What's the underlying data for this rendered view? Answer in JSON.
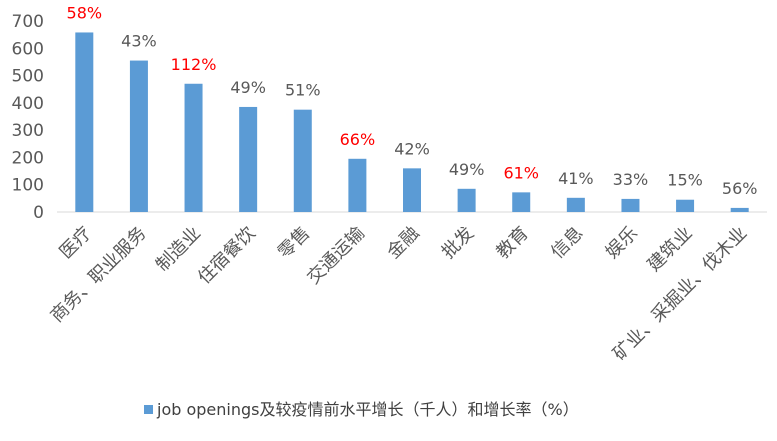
{
  "chart_data": {
    "type": "bar",
    "categories": [
      "医疗",
      "商务、职业服务",
      "制造业",
      "住宿餐饮",
      "零售",
      "交通运输",
      "金融",
      "批发",
      "教育",
      "信息",
      "娱乐",
      "建筑业",
      "矿业、采掘业、伐木业"
    ],
    "series": [
      {
        "name": "job openings及较疫情前水平增长（千人）和增长率（%）",
        "values": [
          658,
          555,
          470,
          385,
          375,
          195,
          160,
          85,
          72,
          52,
          48,
          45,
          15
        ]
      }
    ],
    "data_labels": [
      "58%",
      "43%",
      "112%",
      "49%",
      "51%",
      "66%",
      "42%",
      "49%",
      "61%",
      "41%",
      "33%",
      "15%",
      "56%"
    ],
    "highlighted_labels": [
      true,
      false,
      true,
      false,
      false,
      true,
      false,
      false,
      true,
      false,
      false,
      false,
      false
    ],
    "yticks": [
      "0",
      "100",
      "200",
      "300",
      "400",
      "500",
      "600",
      "700"
    ],
    "ylim": [
      0,
      700
    ],
    "xlabel": "",
    "ylabel": "",
    "grid": false,
    "legend_position": "bottom",
    "colors": {
      "bar": "#5B9BD5",
      "highlight_label": "#FF0000",
      "label": "#595959",
      "axis": "#D9D9D9"
    }
  }
}
